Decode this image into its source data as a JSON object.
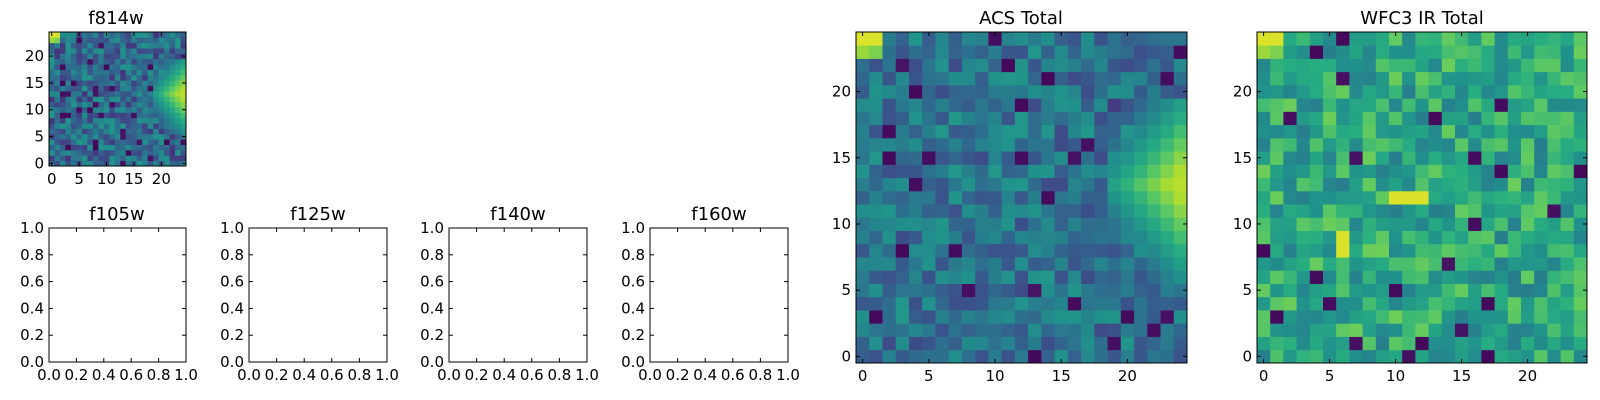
{
  "chart_data": [
    {
      "id": "f814w",
      "type": "heatmap",
      "title": "f814w",
      "colormap": "viridis",
      "grid_size": [
        25,
        25
      ],
      "xlim": [
        -0.5,
        24.5
      ],
      "ylim": [
        -0.5,
        24.5
      ],
      "xticks": [
        0,
        5,
        10,
        15,
        20
      ],
      "yticks": [
        0,
        5,
        10,
        15,
        20
      ],
      "features": [
        {
          "x": 0,
          "y": 24,
          "value": 0.95
        },
        {
          "x": 24,
          "y": 13,
          "value": 0.9
        }
      ]
    },
    {
      "id": "f105w",
      "type": "heatmap",
      "title": "f105w",
      "xlim": [
        0,
        1
      ],
      "ylim": [
        0,
        1
      ],
      "xticks": [
        "0.0",
        "0.2",
        "0.4",
        "0.6",
        "0.8",
        "1.0"
      ],
      "yticks": [
        "0.0",
        "0.2",
        "0.4",
        "0.6",
        "0.8",
        "1.0"
      ]
    },
    {
      "id": "f125w",
      "type": "heatmap",
      "title": "f125w",
      "xlim": [
        0,
        1
      ],
      "ylim": [
        0,
        1
      ],
      "xticks": [
        "0.0",
        "0.2",
        "0.4",
        "0.6",
        "0.8",
        "1.0"
      ],
      "yticks": [
        "0.0",
        "0.2",
        "0.4",
        "0.6",
        "0.8",
        "1.0"
      ]
    },
    {
      "id": "f140w",
      "type": "heatmap",
      "title": "f140w",
      "xlim": [
        0,
        1
      ],
      "ylim": [
        0,
        1
      ],
      "xticks": [
        "0.0",
        "0.2",
        "0.4",
        "0.6",
        "0.8",
        "1.0"
      ],
      "yticks": [
        "0.0",
        "0.2",
        "0.4",
        "0.6",
        "0.8",
        "1.0"
      ]
    },
    {
      "id": "f160w",
      "type": "heatmap",
      "title": "f160w",
      "xlim": [
        0,
        1
      ],
      "ylim": [
        0,
        1
      ],
      "xticks": [
        "0.0",
        "0.2",
        "0.4",
        "0.6",
        "0.8",
        "1.0"
      ],
      "yticks": [
        "0.0",
        "0.2",
        "0.4",
        "0.6",
        "0.8",
        "1.0"
      ]
    },
    {
      "id": "acs_total",
      "type": "heatmap",
      "title": "ACS Total",
      "colormap": "viridis",
      "grid_size": [
        25,
        25
      ],
      "xlim": [
        -0.5,
        24.5
      ],
      "ylim": [
        -0.5,
        24.5
      ],
      "xticks": [
        0,
        5,
        10,
        15,
        20
      ],
      "yticks": [
        0,
        5,
        10,
        15,
        20
      ],
      "features": [
        {
          "x": 0,
          "y": 24,
          "value": 0.95
        },
        {
          "x": 24,
          "y": 13,
          "value": 0.9
        }
      ]
    },
    {
      "id": "wfc3_ir_total",
      "type": "heatmap",
      "title": "WFC3 IR Total",
      "colormap": "viridis",
      "grid_size": [
        25,
        25
      ],
      "xlim": [
        -0.5,
        24.5
      ],
      "ylim": [
        -0.5,
        24.5
      ],
      "xticks": [
        0,
        5,
        10,
        15,
        20
      ],
      "yticks": [
        0,
        5,
        10,
        15,
        20
      ],
      "features": [
        {
          "x": 0,
          "y": 24,
          "value": 0.95
        },
        {
          "x": 10,
          "y": 12,
          "value": 0.95
        },
        {
          "x": 11,
          "y": 12,
          "value": 0.95
        },
        {
          "x": 12,
          "y": 12,
          "value": 0.95
        },
        {
          "x": 6,
          "y": 9,
          "value": 0.95
        },
        {
          "x": 6,
          "y": 8,
          "value": 0.95
        }
      ]
    }
  ]
}
